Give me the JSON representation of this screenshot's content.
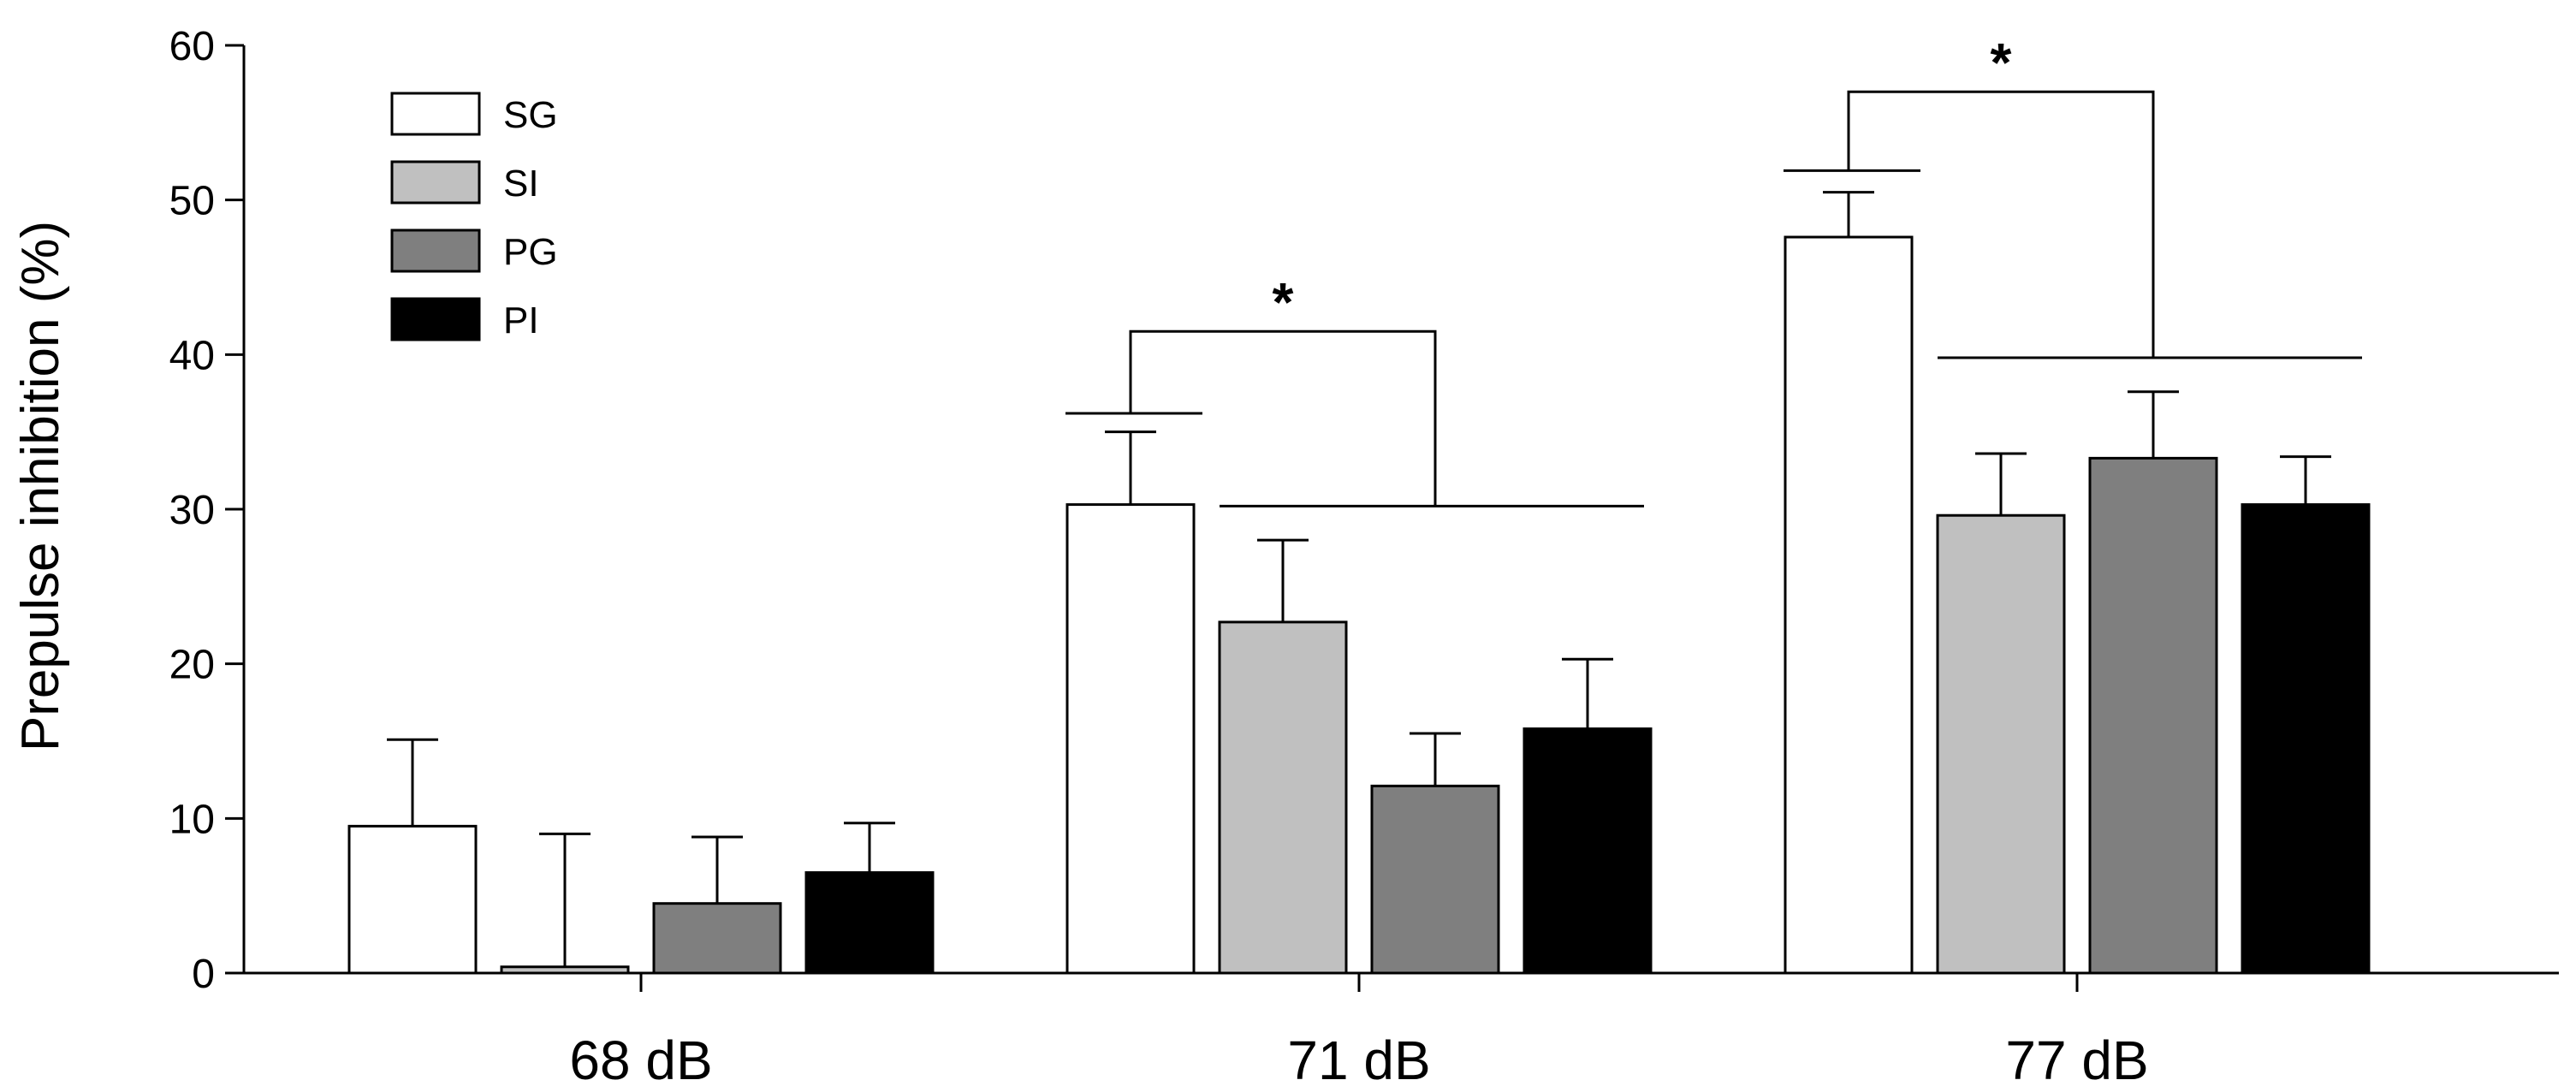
{
  "chart_data": {
    "type": "bar",
    "categories": [
      "68 dB",
      "71 dB",
      "77 dB"
    ],
    "series": [
      {
        "name": "SG",
        "color": "#ffffff",
        "values": [
          9.5,
          30.3,
          47.6
        ],
        "errors": [
          5.6,
          4.7,
          2.9
        ]
      },
      {
        "name": "SI",
        "color": "#c0c0c0",
        "values": [
          0.4,
          22.7,
          29.6
        ],
        "errors": [
          8.6,
          5.3,
          4.0
        ]
      },
      {
        "name": "PG",
        "color": "#7f7f7f",
        "values": [
          4.5,
          12.1,
          33.3
        ],
        "errors": [
          4.3,
          3.4,
          4.3
        ]
      },
      {
        "name": "PI",
        "color": "#000000",
        "values": [
          6.5,
          15.8,
          30.3
        ],
        "errors": [
          3.2,
          4.5,
          3.1
        ]
      }
    ],
    "title": "",
    "xlabel": "",
    "ylabel": "Prepulse inhibition (%)",
    "ylim": [
      0,
      60
    ],
    "yticks": [
      0,
      10,
      20,
      30,
      40,
      50,
      60
    ],
    "legend": "top-left",
    "grid": false,
    "annotations": [
      {
        "text": "*",
        "category": "71 dB",
        "level_low": 36.2,
        "level_bracket": 41.5,
        "level_group": 30.2
      },
      {
        "text": "*",
        "category": "77 dB",
        "level_low": 51.9,
        "level_bracket": 57.0,
        "level_group": 39.8
      }
    ]
  }
}
